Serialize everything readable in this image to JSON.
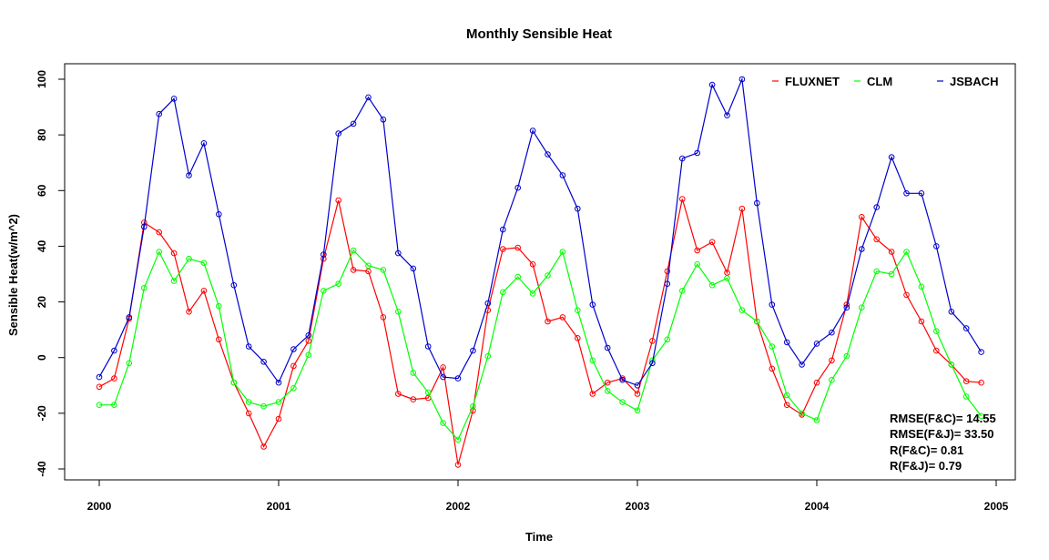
{
  "chart_data": {
    "type": "line",
    "title": "Monthly Sensible Heat",
    "xlabel": "Time",
    "ylabel": "Sensible Heat(w/m^2)",
    "xlim": [
      2000,
      2005
    ],
    "ylim": [
      -40,
      100
    ],
    "x_ticks": [
      2000,
      2001,
      2002,
      2003,
      2004,
      2005
    ],
    "y_ticks": [
      -40,
      -20,
      0,
      20,
      40,
      60,
      80,
      100
    ],
    "grid": false,
    "legend_position": "top-right",
    "series": [
      {
        "name": "FLUXNET",
        "color": "#ff0000",
        "values": [
          -10.5,
          -7.5,
          14,
          48.5,
          45,
          37.5,
          16.5,
          24,
          6.5,
          -9,
          -20,
          -32,
          -22,
          -3,
          6,
          35.5,
          56.5,
          31.5,
          31,
          14.5,
          -13,
          -15,
          -14.5,
          -3.5,
          -38.5,
          -19,
          17,
          39,
          39.5,
          33.5,
          13,
          14.5,
          7,
          -13,
          -9,
          -7.5,
          -13,
          6,
          31,
          57,
          38.5,
          41.5,
          30.5,
          53.5,
          13,
          -4,
          -17,
          -20.5,
          -9,
          -1,
          19,
          50.5,
          42.5,
          38,
          22.5,
          13,
          2.5,
          -2.5,
          -8.5,
          -9
        ]
      },
      {
        "name": "CLM",
        "color": "#00ff00",
        "values": [
          -17,
          -17,
          -2,
          25,
          38,
          27.5,
          35.5,
          34,
          18.5,
          -9,
          -16,
          -17.5,
          -16,
          -11,
          1,
          24,
          26.5,
          38.5,
          33,
          31.5,
          16.5,
          -5.5,
          -12.5,
          -23.5,
          -29.5,
          -17.5,
          0.5,
          23.5,
          29,
          23,
          29.5,
          38,
          17,
          -1,
          -12,
          -16,
          -19,
          -1,
          6.5,
          24,
          33.5,
          26,
          28.5,
          17,
          13,
          4,
          -13.5,
          -20,
          -22.5,
          -8,
          0.5,
          18,
          31,
          30,
          38,
          25.5,
          9.5,
          -2.5,
          -14,
          -21
        ]
      },
      {
        "name": "JSBACH",
        "color": "#0000cc",
        "values": [
          -7,
          2.5,
          14.5,
          47,
          87.5,
          93,
          65.5,
          77,
          51.5,
          26,
          4,
          -1.5,
          -9,
          3,
          8,
          37,
          80.5,
          84,
          93.5,
          85.5,
          37.5,
          32,
          4,
          -7,
          -7.5,
          2.5,
          19.5,
          46,
          61,
          81.5,
          73,
          65.5,
          53.5,
          19,
          3.5,
          -8,
          -10,
          -2,
          26.5,
          71.5,
          73.5,
          98,
          87,
          100,
          55.5,
          19,
          5.5,
          -2.5,
          5,
          9,
          18,
          39,
          54,
          72,
          59,
          59,
          40,
          16.5,
          10.5,
          2
        ]
      }
    ],
    "annotations": [
      "RMSE(F&C)= 14.55",
      "RMSE(F&J)= 33.50",
      "R(F&C)= 0.81",
      "R(F&J)= 0.79"
    ]
  }
}
